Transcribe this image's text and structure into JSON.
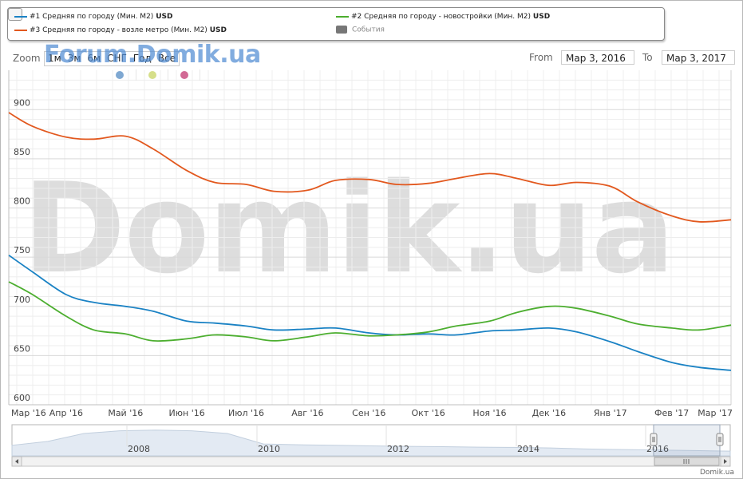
{
  "legend": {
    "items": [
      {
        "label": "#1 Средняя по городу (Мин. M2)",
        "unit": "USD",
        "color": "#1a82c4"
      },
      {
        "label": "#2 Средняя по городу - новостройки (Мин. M2)",
        "unit": "USD",
        "color": "#4cae2f"
      },
      {
        "label": "#3 Средняя по городу - возле метро (Мин. M2)",
        "unit": "USD",
        "color": "#e2581e"
      },
      {
        "label": "События",
        "unit": "",
        "color": "#777777"
      }
    ]
  },
  "toolbar": {
    "zoom_label": "Zoom",
    "zoom_buttons": [
      "1м",
      "3м",
      "6м",
      "СНГ",
      "Год",
      "Все"
    ],
    "from_label": "From",
    "from_value": "Mар 3, 2016",
    "to_label": "To",
    "to_value": "Mар 3, 2017"
  },
  "watermark": {
    "small": "Forum.Domik.ua",
    "big": "Domik.ua"
  },
  "markers": [
    {
      "color": "#7fa8d2"
    },
    {
      "color": "#d6df8a"
    },
    {
      "color": "#d26a95"
    }
  ],
  "credit": "Domik.ua",
  "chart_data": {
    "type": "line",
    "x": [
      "2016-03-03",
      "2016-03-15",
      "2016-04-01",
      "2016-04-15",
      "2016-05-01",
      "2016-05-15",
      "2016-06-01",
      "2016-06-15",
      "2016-07-01",
      "2016-07-15",
      "2016-08-01",
      "2016-08-15",
      "2016-09-01",
      "2016-09-15",
      "2016-10-01",
      "2016-10-15",
      "2016-11-01",
      "2016-11-15",
      "2016-12-01",
      "2016-12-15",
      "2017-01-01",
      "2017-01-15",
      "2017-02-01",
      "2017-02-15",
      "2017-03-03"
    ],
    "series": [
      {
        "name": "#1 Средняя по городу (Мин. M2)",
        "color": "#1a82c4",
        "values": [
          752,
          735,
          712,
          704,
          700,
          695,
          685,
          683,
          680,
          676,
          677,
          678,
          673,
          671,
          672,
          671,
          675,
          676,
          678,
          674,
          664,
          654,
          643,
          638,
          635
        ]
      },
      {
        "name": "#2 Средняя по городу - новостройки (Мин. M2)",
        "color": "#4cae2f",
        "values": [
          725,
          712,
          690,
          676,
          672,
          665,
          667,
          671,
          669,
          665,
          669,
          673,
          670,
          671,
          674,
          680,
          685,
          694,
          700,
          698,
          690,
          682,
          678,
          676,
          681
        ]
      },
      {
        "name": "#3 Средняя по городу - возле метро (Мин. M2)",
        "color": "#e2581e",
        "values": [
          897,
          883,
          872,
          870,
          873,
          860,
          838,
          826,
          824,
          817,
          818,
          828,
          829,
          824,
          825,
          830,
          835,
          830,
          823,
          826,
          822,
          806,
          792,
          786,
          788
        ]
      }
    ],
    "x_ticks": [
      "Мар '16",
      "Апр '16",
      "Май '16",
      "Июн '16",
      "Июл '16",
      "Авг '16",
      "Сен '16",
      "Окт '16",
      "Ноя '16",
      "Дек '16",
      "Янв '17",
      "Фев '17",
      "Мар '17"
    ],
    "y_ticks": [
      600,
      650,
      700,
      750,
      800,
      850,
      900
    ],
    "ylim": [
      600,
      940
    ],
    "grid": true,
    "legend_position": "top",
    "navigator": {
      "year_labels": [
        "2008",
        "2010",
        "2012",
        "2014",
        "2016"
      ],
      "history_values": [
        0.4,
        0.55,
        0.85,
        0.95,
        0.98,
        0.95,
        0.85,
        0.45,
        0.42,
        0.4,
        0.38,
        0.36,
        0.35,
        0.33,
        0.32,
        0.3,
        0.26,
        0.24,
        0.22,
        0.2,
        0.18
      ]
    }
  }
}
